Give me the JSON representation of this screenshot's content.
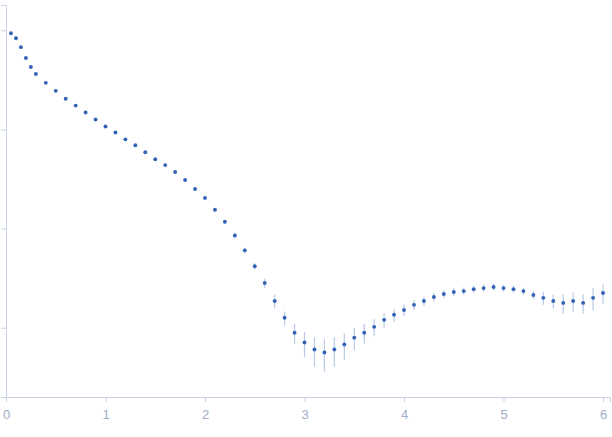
{
  "chart_data": {
    "type": "scatter",
    "log": "y",
    "tick_labels": "x",
    "xlim": [
      0,
      6.07
    ],
    "xticks": [
      0,
      1,
      2,
      3,
      4,
      5,
      6
    ],
    "ylim": [
      0.0002,
      1.8
    ],
    "yticks": [
      0.001,
      0.01,
      0.1,
      1
    ],
    "series": [
      {
        "color": "#3463b5",
        "marker": "circle",
        "x": [
          0.05,
          0.1,
          0.15,
          0.2,
          0.25,
          0.3,
          0.4,
          0.5,
          0.6,
          0.7,
          0.8,
          0.9,
          1.0,
          1.1,
          1.2,
          1.3,
          1.4,
          1.5,
          1.6,
          1.7,
          1.8,
          1.9,
          2.0,
          2.1,
          2.2,
          2.3,
          2.4,
          2.5,
          2.6,
          2.7,
          2.8,
          2.9,
          3.0,
          3.1,
          3.2,
          3.3,
          3.4,
          3.5,
          3.6,
          3.7,
          3.8,
          3.9,
          4.0,
          4.1,
          4.2,
          4.3,
          4.4,
          4.5,
          4.6,
          4.7,
          4.8,
          4.9,
          5.0,
          5.1,
          5.2,
          5.3,
          5.4,
          5.5,
          5.6,
          5.7,
          5.8,
          5.9,
          6.0
        ],
        "values": [
          0.933,
          0.832,
          0.676,
          0.525,
          0.427,
          0.363,
          0.295,
          0.245,
          0.204,
          0.174,
          0.148,
          0.126,
          0.107,
          0.0933,
          0.0794,
          0.0692,
          0.0589,
          0.0501,
          0.0437,
          0.0372,
          0.0309,
          0.0251,
          0.0204,
          0.0155,
          0.0117,
          0.00851,
          0.00603,
          0.00417,
          0.00282,
          0.00186,
          0.00126,
          0.000891,
          0.000708,
          0.000603,
          0.000562,
          0.000603,
          0.000676,
          0.000794,
          0.000891,
          0.00102,
          0.0012,
          0.00135,
          0.00151,
          0.0017,
          0.00186,
          0.00204,
          0.00219,
          0.00229,
          0.00234,
          0.00245,
          0.00251,
          0.00257,
          0.00251,
          0.00245,
          0.00234,
          0.00214,
          0.002,
          0.00186,
          0.00178,
          0.00186,
          0.00178,
          0.002,
          0.00224
        ],
        "errors": [
          0.01,
          0.01,
          0.008,
          0.006,
          0.005,
          0.004,
          0.003,
          0.003,
          0.002,
          0.002,
          0.002,
          0.002,
          0.002,
          0.0015,
          0.0013,
          0.0012,
          0.001,
          0.001,
          0.001,
          0.0008,
          0.0008,
          0.0007,
          0.0007,
          0.0006,
          0.0005,
          0.0005,
          0.0004,
          0.0003,
          0.0003,
          0.0003,
          0.0002,
          0.0002,
          0.0002,
          0.0002,
          0.0002,
          0.0002,
          0.0002,
          0.0002,
          0.0002,
          0.0002,
          0.0002,
          0.0002,
          0.0002,
          0.0002,
          0.0002,
          0.0002,
          0.0002,
          0.0002,
          0.0002,
          0.0002,
          0.0002,
          0.0002,
          0.0002,
          0.0002,
          0.0002,
          0.0002,
          0.0003,
          0.0003,
          0.0004,
          0.0004,
          0.0004,
          0.0005,
          0.0005
        ]
      }
    ]
  }
}
